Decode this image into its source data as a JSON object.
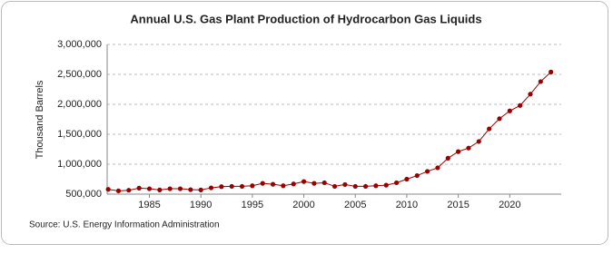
{
  "chart_data": {
    "type": "line",
    "title": "Annual U.S. Gas Plant Production of Hydrocarbon Gas Liquids",
    "y_label": "Thousand Barrels",
    "source": "Source: U.S. Energy Information Administration",
    "x": [
      1981,
      1982,
      1983,
      1984,
      1985,
      1986,
      1987,
      1988,
      1989,
      1990,
      1991,
      1992,
      1993,
      1994,
      1995,
      1996,
      1997,
      1998,
      1999,
      2000,
      2001,
      2002,
      2003,
      2004,
      2005,
      2006,
      2007,
      2008,
      2009,
      2010,
      2011,
      2012,
      2013,
      2014,
      2015,
      2016,
      2017,
      2018,
      2019,
      2020,
      2021,
      2022,
      2023,
      2024
    ],
    "series": [
      {
        "name": "Gas Plant Production",
        "color": "#990000",
        "values": [
          580000,
          555000,
          565000,
          600000,
          590000,
          570000,
          590000,
          590000,
          575000,
          570000,
          605000,
          625000,
          630000,
          630000,
          640000,
          680000,
          665000,
          640000,
          670000,
          710000,
          680000,
          690000,
          630000,
          660000,
          630000,
          630000,
          640000,
          650000,
          690000,
          750000,
          810000,
          880000,
          940000,
          1100000,
          1210000,
          1270000,
          1380000,
          1590000,
          1760000,
          1890000,
          1980000,
          2170000,
          2380000,
          2540000
        ]
      }
    ],
    "xlim": [
      1980.9,
      2025
    ],
    "xticks": [
      1985,
      1990,
      1995,
      2000,
      2005,
      2010,
      2015,
      2020
    ],
    "ylim": [
      500000,
      3000000
    ],
    "yticks": [
      {
        "value": 500000,
        "label": "500,000"
      },
      {
        "value": 1000000,
        "label": "1,000,000"
      },
      {
        "value": 1500000,
        "label": "1,500,000"
      },
      {
        "value": 2000000,
        "label": "2,000,000"
      },
      {
        "value": 2500000,
        "label": "2,500,000"
      },
      {
        "value": 3000000,
        "label": "3,000,000"
      }
    ],
    "grid": true
  }
}
